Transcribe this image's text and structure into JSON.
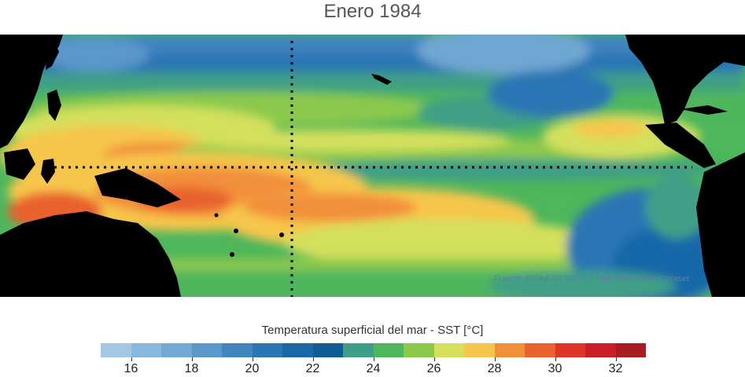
{
  "title": "Enero 1984",
  "source": "Fuente: NOAA OI SST V2 High Resolution Dataset",
  "colorbar": {
    "label": "Temperatura superficial del mar - SST  [°C]",
    "colors": [
      "#a3c6e3",
      "#88b8dd",
      "#72a8d4",
      "#5a97ca",
      "#4386bf",
      "#2a76b4",
      "#1968a8",
      "#115c96",
      "#3f9f86",
      "#4eb65b",
      "#8bc94d",
      "#d4e05d",
      "#f6c64c",
      "#f28f3a",
      "#e9622e",
      "#dd3628",
      "#c81e27",
      "#a71b22"
    ],
    "range": [
      15,
      33
    ],
    "ticks": [
      16,
      18,
      20,
      22,
      24,
      26,
      28,
      30,
      32
    ]
  },
  "colors": {
    "land": "#000000",
    "grid_lines": "#000000"
  }
}
